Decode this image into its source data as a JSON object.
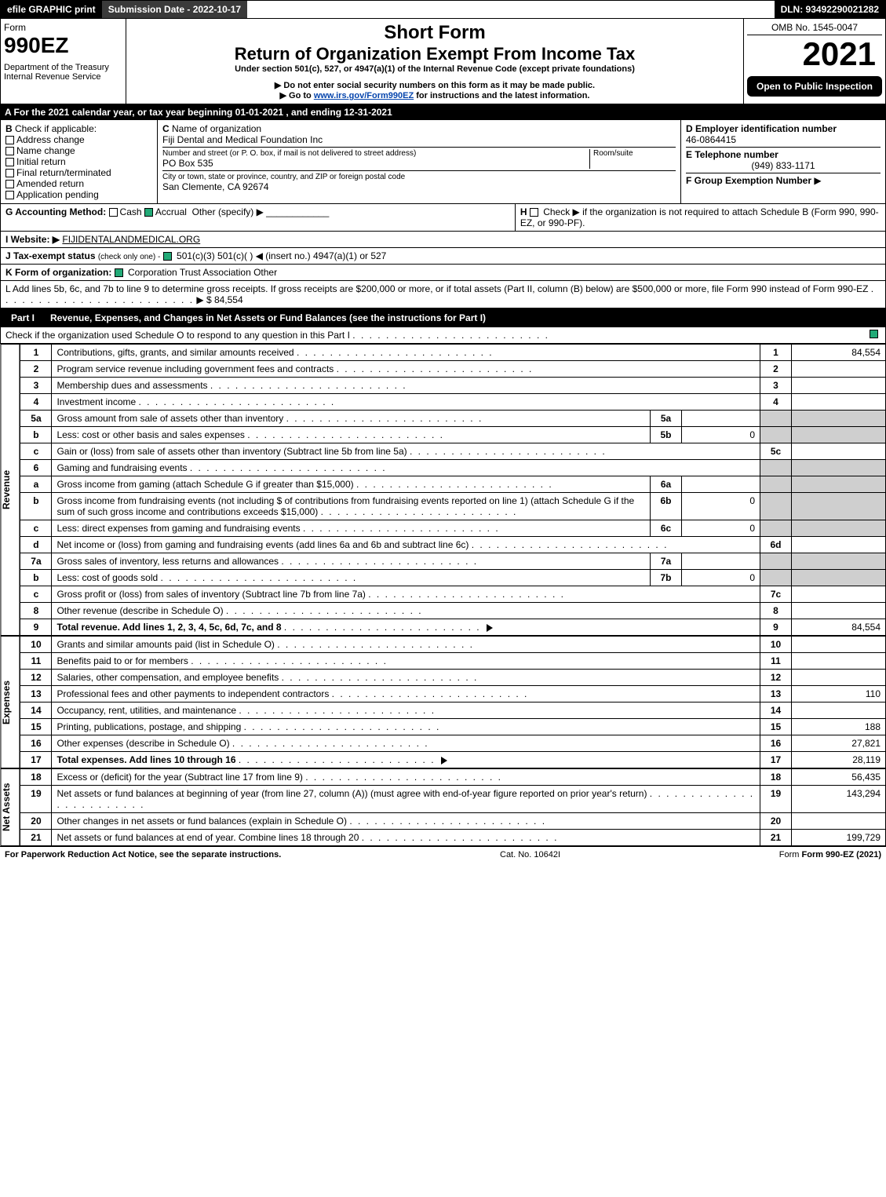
{
  "topbar": {
    "efile": "efile GRAPHIC print",
    "submission": "Submission Date - 2022-10-17",
    "dln": "DLN: 93492290021282"
  },
  "header": {
    "form_label": "Form",
    "form_no": "990EZ",
    "dept": "Department of the Treasury",
    "irs": "Internal Revenue Service",
    "short_form": "Short Form",
    "main_title": "Return of Organization Exempt From Income Tax",
    "under": "Under section 501(c), 527, or 4947(a)(1) of the Internal Revenue Code (except private foundations)",
    "warn": "Do not enter social security numbers on this form as it may be made public.",
    "goto_pre": "Go to ",
    "goto_link": "www.irs.gov/Form990EZ",
    "goto_post": " for instructions and the latest information.",
    "omb": "OMB No. 1545-0047",
    "year": "2021",
    "open": "Open to Public Inspection"
  },
  "lineA": "A  For the 2021 calendar year, or tax year beginning 01-01-2021 , and ending 12-31-2021",
  "boxB": {
    "label": "B",
    "check_if": "Check if applicable:",
    "items": [
      "Address change",
      "Name change",
      "Initial return",
      "Final return/terminated",
      "Amended return",
      "Application pending"
    ]
  },
  "boxC": {
    "label": "C",
    "name_label": "Name of organization",
    "name": "Fiji Dental and Medical Foundation Inc",
    "street_label": "Number and street (or P. O. box, if mail is not delivered to street address)",
    "room_label": "Room/suite",
    "street": "PO Box 535",
    "city_label": "City or town, state or province, country, and ZIP or foreign postal code",
    "city": "San Clemente, CA  92674"
  },
  "boxD": {
    "label": "D Employer identification number",
    "ein": "46-0864415"
  },
  "boxE": {
    "label": "E Telephone number",
    "phone": "(949) 833-1171"
  },
  "boxF": {
    "label": "F Group Exemption Number",
    "arrow": "▶"
  },
  "lineG": {
    "label": "G Accounting Method:",
    "cash": "Cash",
    "accrual": "Accrual",
    "other": "Other (specify) ▶"
  },
  "lineH": {
    "label": "H",
    "text": "Check ▶   if the organization is not required to attach Schedule B (Form 990, 990-EZ, or 990-PF)."
  },
  "lineI": {
    "label": "I Website: ▶",
    "value": "FIJIDENTALANDMEDICAL.ORG"
  },
  "lineJ": {
    "label": "J Tax-exempt status",
    "sub": "(check only one) -",
    "opts": " 501(c)(3)  501(c)(  ) ◀ (insert no.)  4947(a)(1) or  527"
  },
  "lineK": {
    "label": "K Form of organization:",
    "opts": "Corporation   Trust   Association   Other"
  },
  "lineL": {
    "text": "L Add lines 5b, 6c, and 7b to line 9 to determine gross receipts. If gross receipts are $200,000 or more, or if total assets (Part II, column (B) below) are $500,000 or more, file Form 990 instead of Form 990-EZ",
    "amount": "▶ $ 84,554"
  },
  "part1": {
    "label": "Part I",
    "title": "Revenue, Expenses, and Changes in Net Assets or Fund Balances (see the instructions for Part I)",
    "check": "Check if the organization used Schedule O to respond to any question in this Part I"
  },
  "side": {
    "revenue": "Revenue",
    "expenses": "Expenses",
    "net": "Net Assets"
  },
  "rows": [
    {
      "n": "1",
      "t": "Contributions, gifts, grants, and similar amounts received",
      "box": "1",
      "amt": "84,554"
    },
    {
      "n": "2",
      "t": "Program service revenue including government fees and contracts",
      "box": "2",
      "amt": ""
    },
    {
      "n": "3",
      "t": "Membership dues and assessments",
      "box": "3",
      "amt": ""
    },
    {
      "n": "4",
      "t": "Investment income",
      "box": "4",
      "amt": ""
    },
    {
      "n": "5a",
      "t": "Gross amount from sale of assets other than inventory",
      "mid": "5a",
      "midamt": "",
      "shade": true
    },
    {
      "n": "b",
      "t": "Less: cost or other basis and sales expenses",
      "mid": "5b",
      "midamt": "0",
      "shade": true
    },
    {
      "n": "c",
      "t": "Gain or (loss) from sale of assets other than inventory (Subtract line 5b from line 5a)",
      "box": "5c",
      "amt": ""
    },
    {
      "n": "6",
      "t": "Gaming and fundraising events",
      "shade": true
    },
    {
      "n": "a",
      "t": "Gross income from gaming (attach Schedule G if greater than $15,000)",
      "mid": "6a",
      "midamt": "",
      "shade": true
    },
    {
      "n": "b",
      "t": "Gross income from fundraising events (not including $                    of contributions from fundraising events reported on line 1) (attach Schedule G if the sum of such gross income and contributions exceeds $15,000)",
      "mid": "6b",
      "midamt": "0",
      "shade": true
    },
    {
      "n": "c",
      "t": "Less: direct expenses from gaming and fundraising events",
      "mid": "6c",
      "midamt": "0",
      "shade": true
    },
    {
      "n": "d",
      "t": "Net income or (loss) from gaming and fundraising events (add lines 6a and 6b and subtract line 6c)",
      "box": "6d",
      "amt": ""
    },
    {
      "n": "7a",
      "t": "Gross sales of inventory, less returns and allowances",
      "mid": "7a",
      "midamt": "",
      "shade": true
    },
    {
      "n": "b",
      "t": "Less: cost of goods sold",
      "mid": "7b",
      "midamt": "0",
      "shade": true
    },
    {
      "n": "c",
      "t": "Gross profit or (loss) from sales of inventory (Subtract line 7b from line 7a)",
      "box": "7c",
      "amt": ""
    },
    {
      "n": "8",
      "t": "Other revenue (describe in Schedule O)",
      "box": "8",
      "amt": ""
    },
    {
      "n": "9",
      "t": "Total revenue. Add lines 1, 2, 3, 4, 5c, 6d, 7c, and 8",
      "box": "9",
      "amt": "84,554",
      "bold": true,
      "arrow": true
    }
  ],
  "exp_rows": [
    {
      "n": "10",
      "t": "Grants and similar amounts paid (list in Schedule O)",
      "box": "10",
      "amt": ""
    },
    {
      "n": "11",
      "t": "Benefits paid to or for members",
      "box": "11",
      "amt": ""
    },
    {
      "n": "12",
      "t": "Salaries, other compensation, and employee benefits",
      "box": "12",
      "amt": ""
    },
    {
      "n": "13",
      "t": "Professional fees and other payments to independent contractors",
      "box": "13",
      "amt": "110"
    },
    {
      "n": "14",
      "t": "Occupancy, rent, utilities, and maintenance",
      "box": "14",
      "amt": ""
    },
    {
      "n": "15",
      "t": "Printing, publications, postage, and shipping",
      "box": "15",
      "amt": "188"
    },
    {
      "n": "16",
      "t": "Other expenses (describe in Schedule O)",
      "box": "16",
      "amt": "27,821"
    },
    {
      "n": "17",
      "t": "Total expenses. Add lines 10 through 16",
      "box": "17",
      "amt": "28,119",
      "bold": true,
      "arrow": true
    }
  ],
  "na_rows": [
    {
      "n": "18",
      "t": "Excess or (deficit) for the year (Subtract line 17 from line 9)",
      "box": "18",
      "amt": "56,435"
    },
    {
      "n": "19",
      "t": "Net assets or fund balances at beginning of year (from line 27, column (A)) (must agree with end-of-year figure reported on prior year's return)",
      "box": "19",
      "amt": "143,294"
    },
    {
      "n": "20",
      "t": "Other changes in net assets or fund balances (explain in Schedule O)",
      "box": "20",
      "amt": ""
    },
    {
      "n": "21",
      "t": "Net assets or fund balances at end of year. Combine lines 18 through 20",
      "box": "21",
      "amt": "199,729"
    }
  ],
  "footer": {
    "left": "For Paperwork Reduction Act Notice, see the separate instructions.",
    "mid": "Cat. No. 10642I",
    "right": "Form 990-EZ (2021)"
  },
  "colors": {
    "black": "#000000",
    "white": "#ffffff",
    "shade": "#cfcfcf",
    "link": "#0645ad"
  }
}
